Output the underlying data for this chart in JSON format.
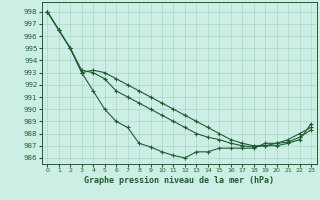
{
  "title": "Graphe pression niveau de la mer (hPa)",
  "bg_color": "#cceee4",
  "grid_color": "#aad8cc",
  "line_color": "#1e5e2e",
  "xlim": [
    -0.5,
    23.5
  ],
  "ylim": [
    985.5,
    998.8
  ],
  "xticks": [
    0,
    1,
    2,
    3,
    4,
    5,
    6,
    7,
    8,
    9,
    10,
    11,
    12,
    13,
    14,
    15,
    16,
    17,
    18,
    19,
    20,
    21,
    22,
    23
  ],
  "yticks": [
    986,
    987,
    988,
    989,
    990,
    991,
    992,
    993,
    994,
    995,
    996,
    997,
    998
  ],
  "line1_x": [
    0,
    1,
    2,
    3,
    4,
    5,
    6,
    7,
    8,
    9,
    10,
    11,
    12,
    13,
    14,
    15,
    16,
    17,
    18,
    19,
    20,
    21,
    22,
    23
  ],
  "line1_y": [
    998.0,
    996.5,
    995.0,
    993.0,
    991.5,
    990.0,
    989.0,
    988.5,
    987.2,
    986.9,
    986.5,
    986.2,
    986.0,
    986.5,
    986.5,
    986.8,
    986.8,
    986.8,
    986.8,
    987.2,
    987.2,
    987.3,
    987.7,
    988.3
  ],
  "line2_x": [
    0,
    1,
    2,
    3,
    4,
    5,
    6,
    7,
    8,
    9,
    10,
    11,
    12,
    13,
    14,
    15,
    16,
    17,
    18,
    19,
    20,
    21,
    22,
    23
  ],
  "line2_y": [
    998.0,
    996.5,
    995.0,
    993.2,
    993.0,
    992.5,
    991.5,
    991.0,
    990.5,
    990.0,
    989.5,
    989.0,
    988.5,
    988.0,
    987.7,
    987.5,
    987.2,
    987.0,
    986.9,
    987.0,
    987.0,
    987.2,
    987.5,
    988.8
  ],
  "line3_x": [
    0,
    1,
    2,
    3,
    4,
    5,
    6,
    7,
    8,
    9,
    10,
    11,
    12,
    13,
    14,
    15,
    16,
    17,
    18,
    19,
    20,
    21,
    22,
    23
  ],
  "line3_y": [
    998.0,
    996.5,
    995.0,
    993.0,
    993.2,
    993.0,
    992.5,
    992.0,
    991.5,
    991.0,
    990.5,
    990.0,
    989.5,
    989.0,
    988.5,
    988.0,
    987.5,
    987.2,
    987.0,
    987.0,
    987.2,
    987.5,
    988.0,
    988.5
  ]
}
